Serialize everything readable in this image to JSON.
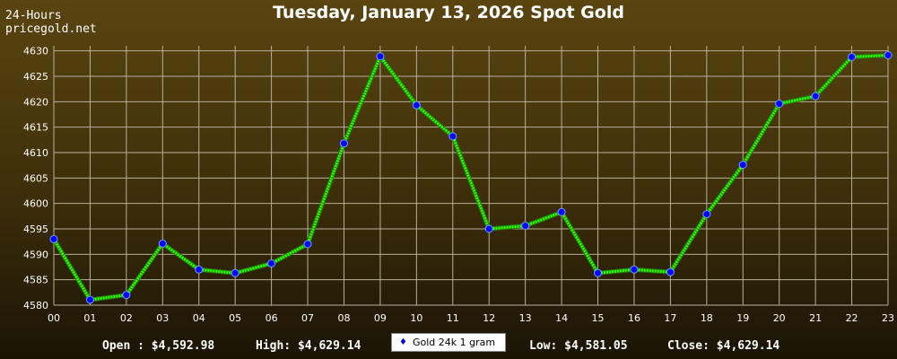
{
  "header": {
    "corner_line1": "24-Hours",
    "corner_line2": "pricegold.net",
    "title": "Tuesday, January 13, 2026 Spot Gold"
  },
  "stats": {
    "open": "Open : $4,592.98",
    "high": "High: $4,629.14",
    "low": "Low: $4,581.05",
    "close": "Close: $4,629.14"
  },
  "legend": {
    "label": "Gold 24k 1 gram",
    "marker": "♦"
  },
  "colors": {
    "line": "#33ff00",
    "marker": "#0000ff",
    "grid": "#b9b09a"
  },
  "chart_data": {
    "type": "line",
    "categories": [
      "00",
      "01",
      "02",
      "03",
      "04",
      "05",
      "06",
      "07",
      "08",
      "09",
      "10",
      "11",
      "12",
      "13",
      "14",
      "15",
      "16",
      "17",
      "18",
      "19",
      "20",
      "21",
      "22",
      "23"
    ],
    "series": [
      {
        "name": "Gold 24k 1 gram",
        "values": [
          4592.98,
          4581.05,
          4582.0,
          4592.1,
          4587.0,
          4586.3,
          4588.2,
          4592.0,
          4611.8,
          4628.9,
          4619.3,
          4613.2,
          4595.0,
          4595.6,
          4598.3,
          4586.3,
          4587.0,
          4586.5,
          4597.9,
          4607.6,
          4619.6,
          4621.1,
          4628.8,
          4629.14
        ]
      }
    ],
    "yticks": [
      4580,
      4585,
      4590,
      4595,
      4600,
      4605,
      4610,
      4615,
      4620,
      4625,
      4630
    ],
    "ylim": [
      4580,
      4631
    ],
    "grid": true,
    "legend_position": "bottom-center"
  }
}
